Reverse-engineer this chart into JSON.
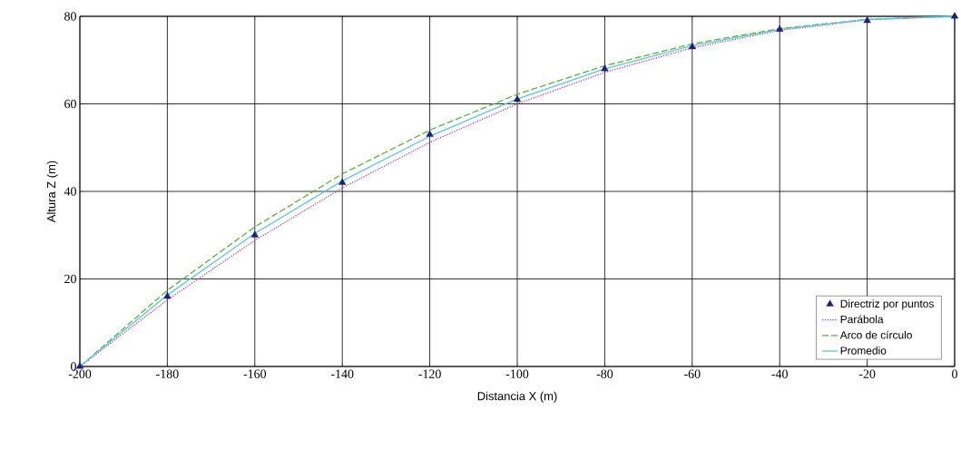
{
  "chart_data": {
    "type": "line",
    "xlabel": "Distancia X (m)",
    "ylabel": "Altura Z (m)",
    "xlim": [
      -200,
      0
    ],
    "ylim": [
      0,
      80
    ],
    "xticks": [
      -200,
      -180,
      -160,
      -140,
      -120,
      -100,
      -80,
      -60,
      -40,
      -20,
      0
    ],
    "yticks": [
      0,
      20,
      40,
      60,
      80
    ],
    "grid": true,
    "legend": "bottom right",
    "x": [
      -200,
      -180,
      -160,
      -140,
      -120,
      -100,
      -80,
      -60,
      -40,
      -20,
      0
    ],
    "series": [
      {
        "name": "Directriz por puntos",
        "type": "scatter",
        "marker": "triangle",
        "color": "#1f1f7a",
        "values": [
          0,
          16,
          30,
          42,
          53,
          61,
          68,
          73,
          77,
          79,
          80
        ]
      },
      {
        "name": "Parábola",
        "line_style": "dotted",
        "marker": "none",
        "color": "#b03a9a",
        "values": [
          0,
          15.2,
          28.8,
          40.8,
          51.2,
          60,
          67.2,
          72.8,
          76.8,
          79.2,
          80
        ]
      },
      {
        "name": "Arco de círculo",
        "line_style": "dashed",
        "marker": "none",
        "color": "#5ab43c",
        "values": [
          0,
          17.4,
          31.9,
          44,
          54,
          62.2,
          68.7,
          73.7,
          77.2,
          79.3,
          80
        ]
      },
      {
        "name": "Promedio",
        "line_style": "solid",
        "marker": "none",
        "color": "#5bc8e0",
        "values": [
          0,
          16.3,
          30.4,
          42.4,
          52.6,
          61.1,
          68,
          73.3,
          77,
          79.3,
          80
        ]
      }
    ]
  }
}
